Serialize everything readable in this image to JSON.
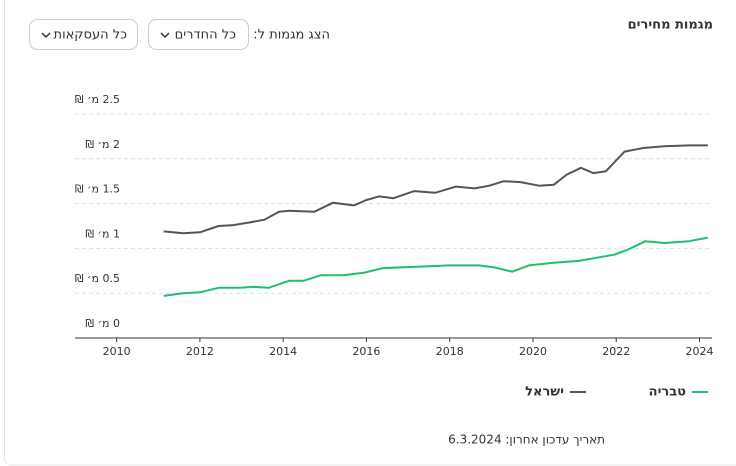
{
  "ui": {
    "filter_label": "הצג מגמות ל:",
    "dropdowns": [
      "כל החדרים",
      "כל העסקאות"
    ],
    "updated": "תאריך עדכון אחרון: 6.3.2024"
  },
  "chart_data": {
    "type": "line",
    "title": "מגמות מחירים",
    "xlim": [
      2009,
      2024.3
    ],
    "xticks": [
      2010,
      2012,
      2014,
      2016,
      2018,
      2020,
      2022,
      2024
    ],
    "ylim": [
      0,
      2.5
    ],
    "yticks": [
      {
        "value": 0,
        "label": "0 מ׳ ₪"
      },
      {
        "value": 0.5,
        "label": "0.5 מ׳ ₪"
      },
      {
        "value": 1,
        "label": "1 מ׳ ₪"
      },
      {
        "value": 1.5,
        "label": "1.5 מ׳ ₪"
      },
      {
        "value": 2,
        "label": "2 מ׳ ₪"
      },
      {
        "value": 2.5,
        "label": "2.5 מ׳ ₪"
      }
    ],
    "grid": true,
    "series": [
      {
        "name": "טבריה",
        "color": "#1dbf73",
        "x": [
          2011.13,
          2011.6,
          2012.0,
          2012.45,
          2012.95,
          2013.3,
          2013.65,
          2014.15,
          2014.5,
          2014.9,
          2015.45,
          2015.95,
          2016.4,
          2016.9,
          2017.5,
          2018.0,
          2018.7,
          2019.05,
          2019.5,
          2019.9,
          2020.5,
          2021.1,
          2021.45,
          2021.95,
          2022.3,
          2022.7,
          2023.15,
          2023.75,
          2024.2
        ],
        "values": [
          0.47,
          0.5,
          0.51,
          0.56,
          0.56,
          0.57,
          0.56,
          0.64,
          0.64,
          0.7,
          0.7,
          0.73,
          0.78,
          0.79,
          0.8,
          0.81,
          0.81,
          0.79,
          0.74,
          0.81,
          0.84,
          0.86,
          0.89,
          0.93,
          0.99,
          1.08,
          1.06,
          1.08,
          1.12
        ]
      },
      {
        "name": "ישראל",
        "color": "#555555",
        "x": [
          2011.13,
          2011.6,
          2012.0,
          2012.45,
          2012.8,
          2013.2,
          2013.55,
          2013.9,
          2014.15,
          2014.75,
          2015.2,
          2015.7,
          2016.0,
          2016.3,
          2016.65,
          2017.15,
          2017.65,
          2018.15,
          2018.6,
          2018.95,
          2019.3,
          2019.7,
          2020.15,
          2020.5,
          2020.8,
          2021.15,
          2021.45,
          2021.75,
          2022.2,
          2022.65,
          2023.15,
          2023.75,
          2024.2
        ],
        "values": [
          1.19,
          1.17,
          1.18,
          1.25,
          1.26,
          1.29,
          1.32,
          1.41,
          1.42,
          1.41,
          1.51,
          1.48,
          1.54,
          1.58,
          1.56,
          1.64,
          1.62,
          1.69,
          1.67,
          1.7,
          1.75,
          1.74,
          1.7,
          1.71,
          1.82,
          1.9,
          1.84,
          1.86,
          2.08,
          2.12,
          2.14,
          2.15,
          2.15
        ]
      }
    ]
  }
}
